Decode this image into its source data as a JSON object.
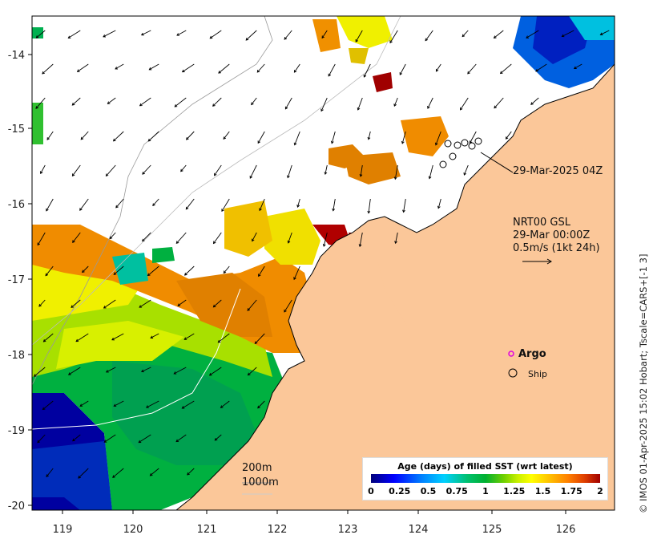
{
  "map": {
    "x_ticks": [
      "119",
      "120",
      "121",
      "122",
      "123",
      "124",
      "125",
      "126"
    ],
    "y_ticks": [
      "-14",
      "-15",
      "-16",
      "-17",
      "-18",
      "-19",
      "-20"
    ],
    "timestamp_label": "29-Mar-2025 04Z",
    "product_line1": "NRT00 GSL",
    "product_line2": "29-Mar 00:00Z",
    "scale_line": "0.5m/s (1kt 24h)",
    "contour_200": "200m",
    "contour_1000": "1000m",
    "argo_label": "Argo",
    "ship_label": "Ship",
    "copyright": "© IMOS 01-Apr-2025 15:02 Hobart; Tscale=CARS+[-1 3]",
    "colors": {
      "land": "#fbc799",
      "argo": "#e000e0"
    }
  },
  "legend": {
    "title": "Age (days) of filled SST (wrt latest)",
    "ticks": [
      "0",
      "0.25",
      "0.5",
      "0.75",
      "1",
      "1.25",
      "1.5",
      "1.75",
      "2"
    ]
  }
}
